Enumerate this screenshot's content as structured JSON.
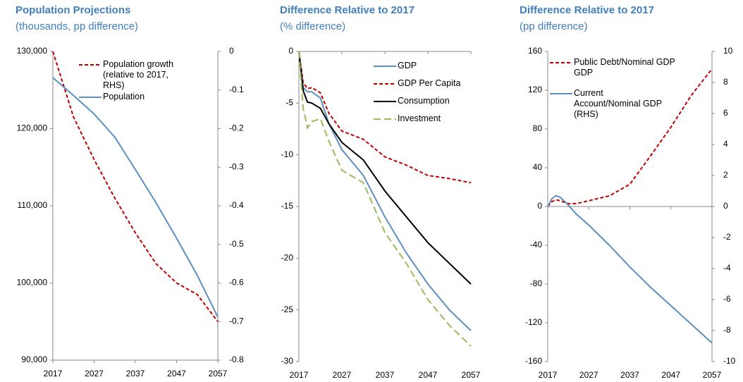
{
  "chart_data": [
    {
      "type": "line",
      "title": "Population Projections",
      "subtitle": "(thousands, pp difference)",
      "x": [
        2017,
        2022,
        2027,
        2032,
        2037,
        2042,
        2047,
        2052,
        2057
      ],
      "xlim": [
        2017,
        2057
      ],
      "xticks": [
        2017,
        2027,
        2037,
        2047,
        2057
      ],
      "ylim": [
        90000,
        130000
      ],
      "yticks": [
        {
          "value": 90000,
          "label": "90,000"
        },
        {
          "value": 100000,
          "label": "100,000"
        },
        {
          "value": 110000,
          "label": "110,000"
        },
        {
          "value": 120000,
          "label": "120,000"
        },
        {
          "value": 130000,
          "label": "130,000"
        }
      ],
      "y2lim": [
        -0.8,
        0
      ],
      "y2ticks": [
        0,
        -0.1,
        -0.2,
        -0.3,
        -0.4,
        -0.5,
        -0.6,
        -0.7,
        -0.8
      ],
      "series": [
        {
          "name": "Population growth (relative to 2017, RHS)",
          "color": "#c00000",
          "style": "dashed",
          "axis": "y2",
          "values": [
            0,
            -0.17,
            -0.28,
            -0.38,
            -0.47,
            -0.55,
            -0.6,
            -0.63,
            -0.7
          ]
        },
        {
          "name": "Population",
          "color": "#5b8fc1",
          "style": "solid",
          "values": [
            126600,
            124300,
            121900,
            118900,
            114700,
            110400,
            105800,
            101000,
            95600
          ]
        }
      ]
    },
    {
      "type": "line",
      "title": "Difference Relative to 2017",
      "subtitle": "(% difference)",
      "x": [
        2017,
        2018,
        2019,
        2020,
        2022,
        2024,
        2027,
        2032,
        2037,
        2042,
        2047,
        2052,
        2057
      ],
      "xlim": [
        2017,
        2057
      ],
      "xticks": [
        2017,
        2027,
        2037,
        2047,
        2057
      ],
      "ylim": [
        -30,
        0
      ],
      "yticks": [
        0,
        -5,
        -10,
        -15,
        -20,
        -25,
        -30
      ],
      "series": [
        {
          "name": "GDP",
          "color": "#5b8fc1",
          "style": "solid",
          "values": [
            0,
            -3.5,
            -3.9,
            -3.9,
            -4.5,
            -7,
            -9.5,
            -12,
            -16,
            -19.5,
            -22.5,
            -25,
            -27
          ]
        },
        {
          "name": "GDP Per Capita",
          "color": "#c00000",
          "style": "dashed",
          "values": [
            0,
            -3,
            -3.6,
            -3.5,
            -4,
            -6,
            -7.7,
            -8.5,
            -10.2,
            -11,
            -12,
            -12.3,
            -12.7
          ]
        },
        {
          "name": "Consumption",
          "color": "#000000",
          "style": "solid",
          "values": [
            0,
            -3.8,
            -4.9,
            -5,
            -5.5,
            -7,
            -8.8,
            -10.5,
            -13.5,
            -16,
            -18.5,
            -20.5,
            -22.5
          ]
        },
        {
          "name": "Investment",
          "color": "#9bbb59",
          "style": "longdash",
          "values": [
            0,
            -5.5,
            -7.4,
            -6.8,
            -6.5,
            -8.7,
            -11.5,
            -12.7,
            -17.5,
            -20.5,
            -24,
            -26.5,
            -28.5
          ]
        }
      ]
    },
    {
      "type": "line",
      "title": "Difference Relative to 2017",
      "subtitle": "(pp difference)",
      "x": [
        2017,
        2018,
        2019,
        2020,
        2022,
        2024,
        2027,
        2032,
        2037,
        2042,
        2047,
        2052,
        2057
      ],
      "xlim": [
        2017,
        2057
      ],
      "xticks": [
        2017,
        2027,
        2037,
        2047,
        2057
      ],
      "ylim": [
        -160,
        160
      ],
      "yticks": [
        160,
        120,
        80,
        40,
        0,
        -40,
        -80,
        -120,
        -160
      ],
      "y2lim": [
        -10,
        10
      ],
      "y2ticks": [
        10,
        8,
        6,
        4,
        2,
        0,
        -2,
        -4,
        -6,
        -8,
        -10
      ],
      "series": [
        {
          "name": "Public Debt/Nominal GDP GDP",
          "color": "#c00000",
          "style": "dashed",
          "values": [
            0,
            5,
            7,
            6,
            3,
            3,
            6,
            11,
            23,
            52,
            82,
            115,
            142
          ]
        },
        {
          "name": "Current Account/Nominal GDP (RHS)",
          "color": "#5b8fc1",
          "style": "solid",
          "axis": "y2",
          "values": [
            0,
            0.5,
            0.7,
            0.6,
            0.1,
            -0.5,
            -1.2,
            -2.5,
            -3.9,
            -5.2,
            -6.4,
            -7.6,
            -8.8
          ]
        }
      ]
    }
  ]
}
